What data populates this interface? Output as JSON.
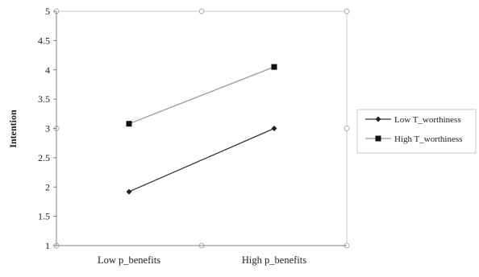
{
  "chart_data": {
    "type": "line",
    "categories": [
      "Low p_benefits",
      "High p_benefits"
    ],
    "ylabel": "Intention",
    "xlabel": "",
    "ylim": [
      1,
      5
    ],
    "yticks": [
      "1",
      "1.5",
      "2",
      "2.5",
      "3",
      "3.5",
      "4",
      "4.5",
      "5"
    ],
    "legend_position": "right",
    "grid": false,
    "series": [
      {
        "name": "Low T_worthiness",
        "values": [
          1.92,
          3.0
        ],
        "marker": "diamond",
        "color": "#222222",
        "line_color": "#333333"
      },
      {
        "name": "High T_worthiness",
        "values": [
          3.08,
          4.05
        ],
        "marker": "square",
        "color": "#111111",
        "line_color": "#9a9a9a"
      }
    ]
  }
}
